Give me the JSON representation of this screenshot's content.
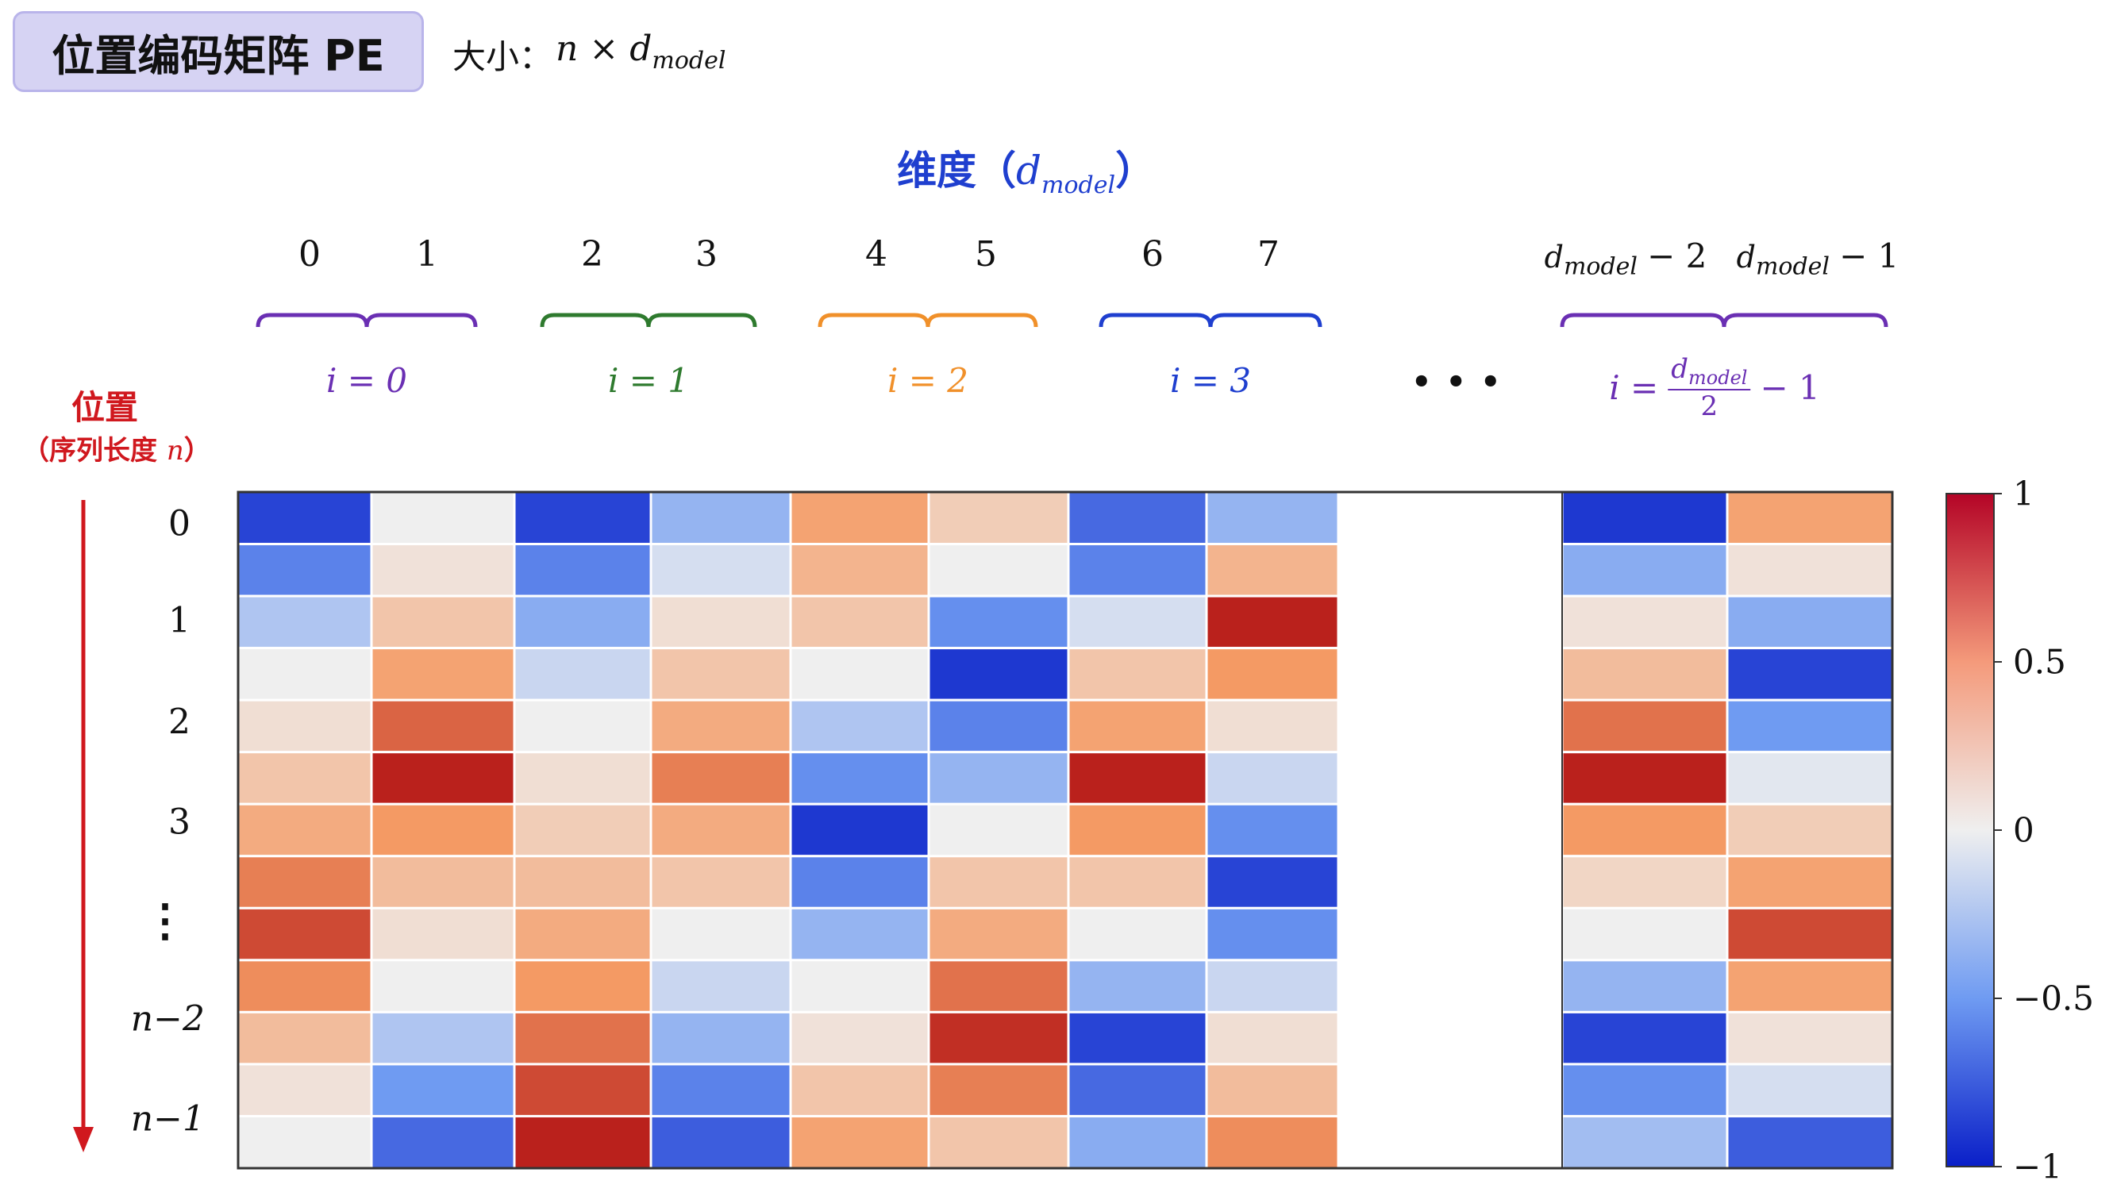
{
  "title": "位置编码矩阵 PE",
  "size": {
    "label": "大小：",
    "n": "n",
    "times": "×",
    "d": "d",
    "sub": "model"
  },
  "dimension_header": {
    "text": "维度（",
    "d": "d",
    "sub": "model",
    "close": "）"
  },
  "position_label": "位置",
  "sequence_label": {
    "text": "（序列长度 ",
    "n": "n",
    "close": "）"
  },
  "column_indices": [
    "0",
    "1",
    "2",
    "3",
    "4",
    "5",
    "6",
    "7"
  ],
  "last_column_indices": [
    {
      "d": "d",
      "sub": "model",
      "suffix": "− 2"
    },
    {
      "d": "d",
      "sub": "model",
      "suffix": "− 1"
    }
  ],
  "i_labels": [
    "i = 0",
    "i = 1",
    "i = 2",
    "i = 3"
  ],
  "i_label_last": {
    "prefix": "i =",
    "num_d": "d",
    "num_sub": "model",
    "den": "2",
    "suffix": "− 1"
  },
  "ellipsis_h": "• • •",
  "row_labels": [
    "0",
    "1",
    "2",
    "3",
    "⋮",
    "n−2",
    "n−1"
  ],
  "colors": {
    "brace": [
      "#6a2fb3",
      "#2e7a2e",
      "#f0902a",
      "#1f3fcf",
      "#6a2fb3"
    ],
    "position": "#d0181e",
    "header": "#1f3fcf"
  },
  "colorbar": {
    "ticks": [
      "1",
      "0.5",
      "0",
      "−0.5",
      "−1"
    ],
    "values": [
      1,
      0.5,
      0,
      -0.5,
      -1
    ],
    "colormap": "coolwarm"
  },
  "chart_data": {
    "type": "heatmap",
    "vmin": -1,
    "vmax": 1,
    "rows": 13,
    "columns": [
      "0",
      "1",
      "2",
      "3",
      "4",
      "5",
      "6",
      "7",
      "d_model − 2",
      "d_model − 1"
    ],
    "values": [
      [
        -0.85,
        0.0,
        -0.85,
        -0.35,
        0.45,
        0.2,
        -0.7,
        -0.35,
        -0.9,
        0.45
      ],
      [
        -0.6,
        0.08,
        -0.6,
        -0.1,
        0.35,
        0.0,
        -0.6,
        0.35,
        -0.4,
        0.08
      ],
      [
        -0.25,
        0.25,
        -0.4,
        0.1,
        0.25,
        -0.55,
        -0.1,
        0.95,
        0.08,
        -0.4
      ],
      [
        0.0,
        0.45,
        -0.15,
        0.25,
        0.0,
        -0.9,
        0.25,
        0.5,
        0.3,
        -0.85
      ],
      [
        0.1,
        0.7,
        0.0,
        0.4,
        -0.25,
        -0.6,
        0.45,
        0.1,
        0.65,
        -0.5
      ],
      [
        0.25,
        0.95,
        0.1,
        0.6,
        -0.55,
        -0.35,
        0.95,
        -0.15,
        0.95,
        -0.05
      ],
      [
        0.4,
        0.5,
        0.2,
        0.4,
        -0.9,
        0.0,
        0.5,
        -0.55,
        0.5,
        0.2
      ],
      [
        0.6,
        0.3,
        0.3,
        0.25,
        -0.6,
        0.25,
        0.25,
        -0.85,
        0.15,
        0.45
      ],
      [
        0.8,
        0.1,
        0.4,
        0.0,
        -0.35,
        0.4,
        0.0,
        -0.55,
        0.0,
        0.8
      ],
      [
        0.55,
        0.0,
        0.5,
        -0.15,
        0.0,
        0.65,
        -0.35,
        -0.15,
        -0.35,
        0.45
      ],
      [
        0.3,
        -0.25,
        0.65,
        -0.35,
        0.08,
        0.9,
        -0.85,
        0.1,
        -0.85,
        0.08
      ],
      [
        0.08,
        -0.5,
        0.8,
        -0.6,
        0.25,
        0.6,
        -0.7,
        0.3,
        -0.55,
        -0.1
      ],
      [
        0.0,
        -0.7,
        0.95,
        -0.75,
        0.45,
        0.25,
        -0.4,
        0.55,
        -0.3,
        -0.75
      ]
    ]
  }
}
